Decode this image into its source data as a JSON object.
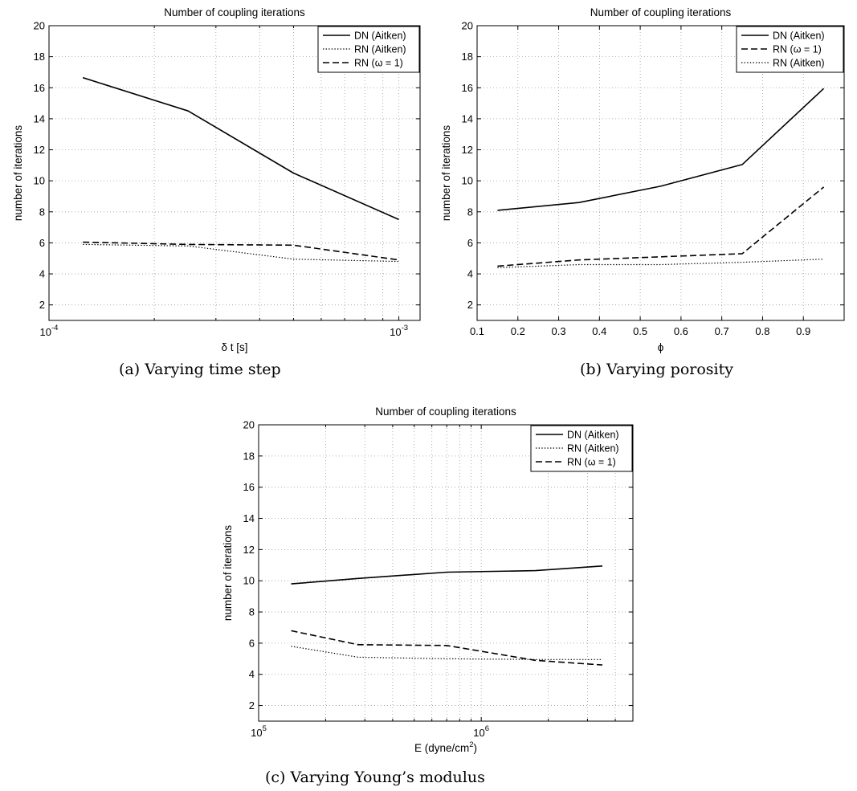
{
  "chart_data": [
    {
      "id": "a",
      "type": "line",
      "title": "Number of coupling iterations",
      "xlabel": "δ t [s]",
      "ylabel": "number of iterations",
      "caption": "(a) Varying time step",
      "xscale": "log",
      "xlim": [
        0.0001,
        0.00115
      ],
      "ylim": [
        1,
        20
      ],
      "yticks": [
        2,
        4,
        6,
        8,
        10,
        12,
        14,
        16,
        18,
        20
      ],
      "xticks_major": [
        {
          "value": 0.0001,
          "base": "10",
          "exp": "-4"
        },
        {
          "value": 0.001,
          "base": "10",
          "exp": "-3"
        }
      ],
      "xgrid": [
        0.0001,
        0.0002,
        0.0003,
        0.0004,
        0.0005,
        0.0006,
        0.0007,
        0.0008,
        0.0009,
        0.001
      ],
      "grid": true,
      "legend_position": "top-right",
      "series": [
        {
          "name": "DN (Aitken)",
          "style": "solid",
          "x": [
            0.000125,
            0.00025,
            0.0005,
            0.001
          ],
          "y": [
            16.65,
            14.5,
            10.5,
            7.5
          ]
        },
        {
          "name": "RN (Aitken)",
          "style": "dotted",
          "x": [
            0.000125,
            0.00025,
            0.0005,
            0.001
          ],
          "y": [
            5.9,
            5.8,
            4.95,
            4.8
          ]
        },
        {
          "name": "RN (ω = 1)",
          "style": "dashed",
          "x": [
            0.000125,
            0.00025,
            0.0005,
            0.001
          ],
          "y": [
            6.05,
            5.9,
            5.85,
            4.9
          ]
        }
      ]
    },
    {
      "id": "b",
      "type": "line",
      "title": "Number of coupling iterations",
      "xlabel": "ϕ",
      "ylabel": "number of iterations",
      "caption": "(b) Varying porosity",
      "xscale": "linear",
      "xlim": [
        0.1,
        1.0
      ],
      "ylim": [
        1,
        20
      ],
      "yticks": [
        2,
        4,
        6,
        8,
        10,
        12,
        14,
        16,
        18,
        20
      ],
      "xticks": [
        0.1,
        0.2,
        0.3,
        0.4,
        0.5,
        0.6,
        0.7,
        0.8,
        0.9
      ],
      "xtick_labels": [
        "0.1",
        "0.2",
        "0.3",
        "0.4",
        "0.5",
        "0.6",
        "0.7",
        "0.8",
        "0.9"
      ],
      "grid": true,
      "legend_position": "top-right",
      "series": [
        {
          "name": "DN (Aitken)",
          "style": "solid",
          "x": [
            0.15,
            0.35,
            0.55,
            0.75,
            0.95
          ],
          "y": [
            8.1,
            8.6,
            9.65,
            11.05,
            15.95
          ]
        },
        {
          "name": "RN (ω = 1)",
          "style": "dashed",
          "x": [
            0.15,
            0.35,
            0.55,
            0.75,
            0.95
          ],
          "y": [
            4.5,
            4.9,
            5.1,
            5.3,
            9.6
          ]
        },
        {
          "name": "RN (Aitken)",
          "style": "dotted",
          "x": [
            0.15,
            0.35,
            0.55,
            0.75,
            0.95
          ],
          "y": [
            4.4,
            4.6,
            4.6,
            4.75,
            4.95
          ]
        }
      ]
    },
    {
      "id": "c",
      "type": "line",
      "title": "Number of coupling iterations",
      "xlabel": "E (dyne/cm",
      "xlabel_sup": "2",
      "xlabel_end": ")",
      "ylabel": "number of iterations",
      "caption": "(c) Varying Young’s modulus",
      "xscale": "log",
      "xlim": [
        100000,
        4800000
      ],
      "ylim": [
        1,
        20
      ],
      "yticks": [
        2,
        4,
        6,
        8,
        10,
        12,
        14,
        16,
        18,
        20
      ],
      "xticks_major": [
        {
          "value": 100000,
          "base": "10",
          "exp": "5"
        },
        {
          "value": 1000000,
          "base": "10",
          "exp": "6"
        }
      ],
      "xgrid": [
        100000,
        200000,
        300000,
        400000,
        500000,
        600000,
        700000,
        800000,
        900000,
        1000000,
        2000000,
        3000000,
        4000000
      ],
      "grid": true,
      "legend_position": "top-right",
      "series": [
        {
          "name": "DN (Aitken)",
          "style": "solid",
          "x": [
            140000,
            280000,
            700000,
            1750000,
            3500000
          ],
          "y": [
            9.8,
            10.15,
            10.55,
            10.65,
            10.95
          ]
        },
        {
          "name": "RN (Aitken)",
          "style": "dotted",
          "x": [
            140000,
            280000,
            700000,
            1750000,
            3500000
          ],
          "y": [
            5.8,
            5.1,
            5.0,
            4.95,
            4.95
          ]
        },
        {
          "name": "RN (ω = 1)",
          "style": "dashed",
          "x": [
            140000,
            280000,
            700000,
            1750000,
            3500000
          ],
          "y": [
            6.8,
            5.9,
            5.85,
            4.9,
            4.6
          ]
        }
      ]
    }
  ]
}
